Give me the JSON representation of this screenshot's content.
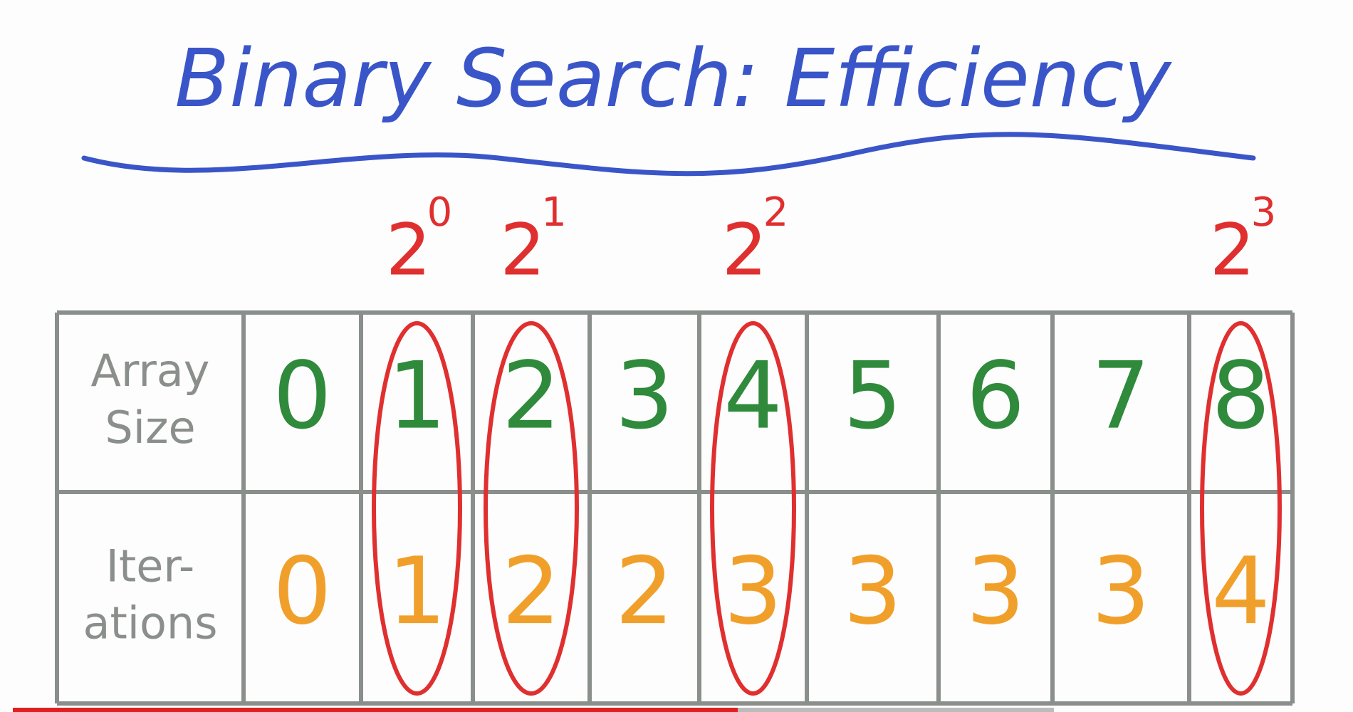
{
  "title": "Binary Search: Efficiency",
  "powers": [
    null,
    {
      "base": 2,
      "exponent": 0
    },
    {
      "base": 2,
      "exponent": 1
    },
    null,
    {
      "base": 2,
      "exponent": 2
    },
    null,
    null,
    null,
    {
      "base": 2,
      "exponent": 3
    }
  ],
  "table": {
    "rows": [
      {
        "label": [
          "Array",
          "Size"
        ],
        "values": [
          0,
          1,
          2,
          3,
          4,
          5,
          6,
          7,
          8
        ]
      },
      {
        "label": [
          "Iter-",
          "ations"
        ],
        "values": [
          0,
          1,
          2,
          2,
          3,
          3,
          3,
          3,
          4
        ]
      }
    ]
  }
}
